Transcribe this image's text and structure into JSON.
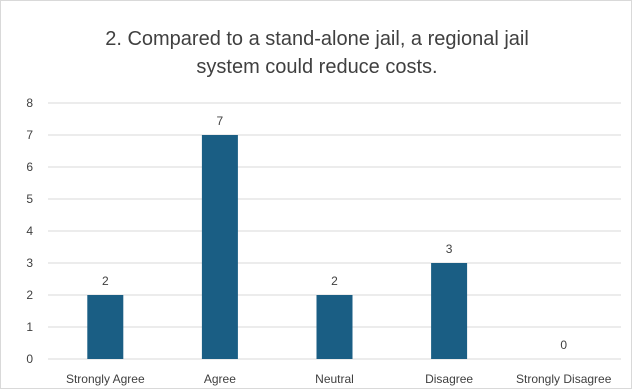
{
  "chart_data": {
    "type": "bar",
    "title": "2. Compared to a stand-alone jail, a regional jail system could reduce costs.",
    "xlabel": "",
    "ylabel": "",
    "categories": [
      "Strongly Agree",
      "Agree",
      "Neutral",
      "Disagree",
      "Strongly Disagree"
    ],
    "values": [
      2,
      7,
      2,
      3,
      0
    ],
    "ylim": [
      0,
      8
    ],
    "yticks": [
      "0",
      "1",
      "2",
      "3",
      "4",
      "5",
      "6",
      "7",
      "8"
    ],
    "data_labels": [
      "2",
      "7",
      "2",
      "3",
      "0"
    ],
    "grid": "horizontal",
    "legend": "none",
    "bar_color": "#1a5e84",
    "grid_color": "#d9d9d9"
  }
}
